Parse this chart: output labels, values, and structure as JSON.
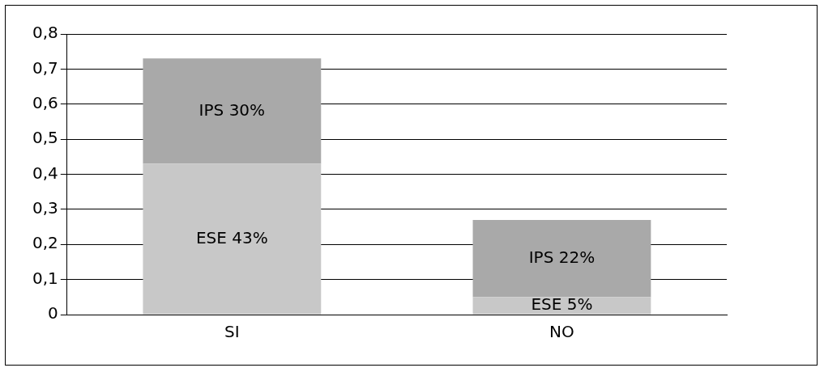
{
  "chart_data": {
    "type": "bar",
    "stacked": true,
    "categories": [
      "SI",
      "NO"
    ],
    "series": [
      {
        "color": "#c8c8c8",
        "values": [
          0.43,
          0.05
        ],
        "value_labels": [
          "ESE 43%",
          "ESE 5%"
        ]
      },
      {
        "color": "#a9a9a9",
        "values": [
          0.3,
          0.22
        ],
        "value_labels": [
          "IPS 30%",
          "IPS 22%"
        ]
      }
    ],
    "ylim": [
      0,
      0.8
    ],
    "yticks": [
      0,
      {
        "value": 0.1,
        "label": "0,1"
      },
      {
        "value": 0.2,
        "label": "0,2"
      },
      {
        "value": 0.3,
        "label": "0,3"
      },
      {
        "value": 0.4,
        "label": "0,4"
      },
      {
        "value": 0.5,
        "label": "0,5"
      },
      {
        "value": 0.6,
        "label": "0,6"
      },
      {
        "value": 0.7,
        "label": "0,7"
      },
      {
        "value": 0.8,
        "label": "0,8"
      }
    ],
    "grid": "y"
  }
}
